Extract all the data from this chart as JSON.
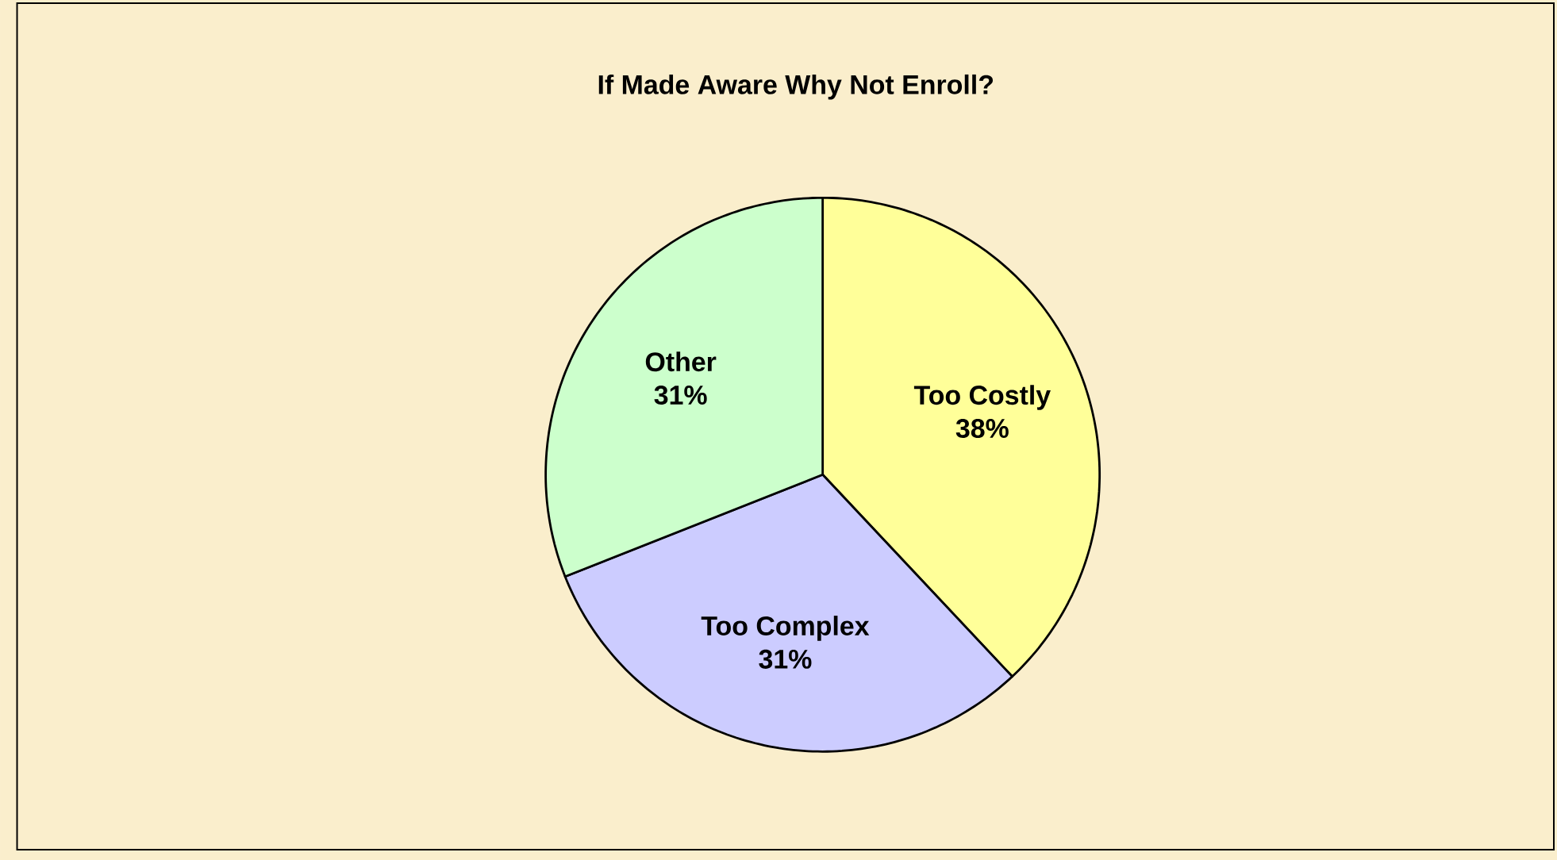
{
  "chart_data": {
    "type": "pie",
    "title": "If Made Aware Why Not Enroll?",
    "categories": [
      "Too Costly",
      "Too Complex",
      "Other"
    ],
    "values": [
      38,
      31,
      31
    ],
    "value_labels": [
      "38%",
      "31%",
      "31%"
    ],
    "colors": [
      "#ffff99",
      "#ccccff",
      "#ccffcc"
    ]
  }
}
